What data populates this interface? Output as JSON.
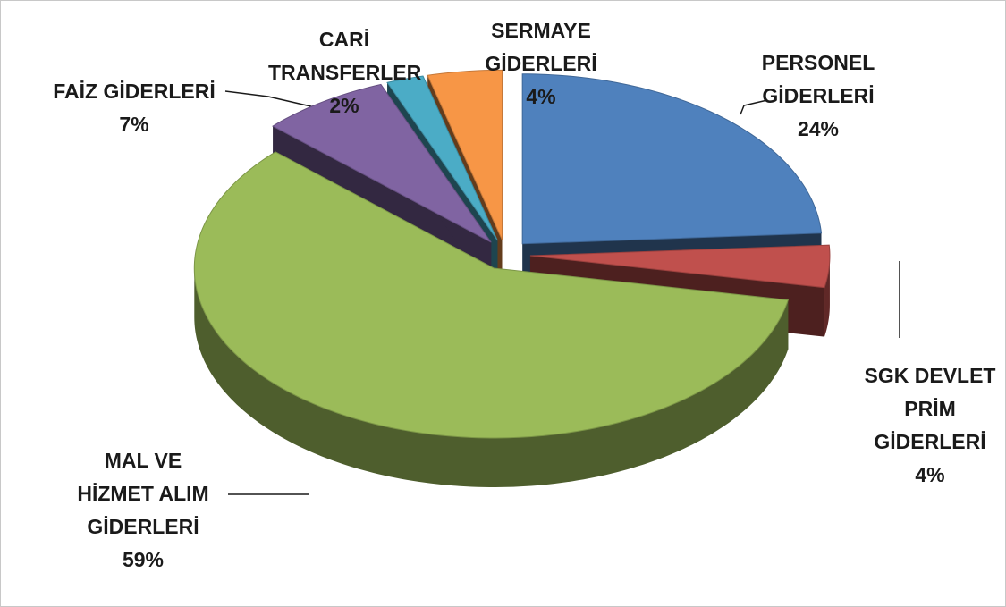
{
  "chart_data": {
    "type": "pie3d",
    "categories": [
      "PERSONEL GİDERLERİ",
      "SGK DEVLET PRİM GİDERLERİ",
      "MAL VE HİZMET ALIM GİDERLERİ",
      "FAİZ GİDERLERİ",
      "CARİ TRANSFERLER",
      "SERMAYE GİDERLERİ"
    ],
    "values": [
      24,
      4,
      59,
      7,
      2,
      4
    ],
    "value_labels": [
      "24%",
      "4%",
      "59%",
      "7%",
      "2%",
      "4%"
    ],
    "colors": [
      "#4f81bd",
      "#c0504d",
      "#9bbb59",
      "#8064a2",
      "#4bacc6",
      "#f79646"
    ]
  }
}
